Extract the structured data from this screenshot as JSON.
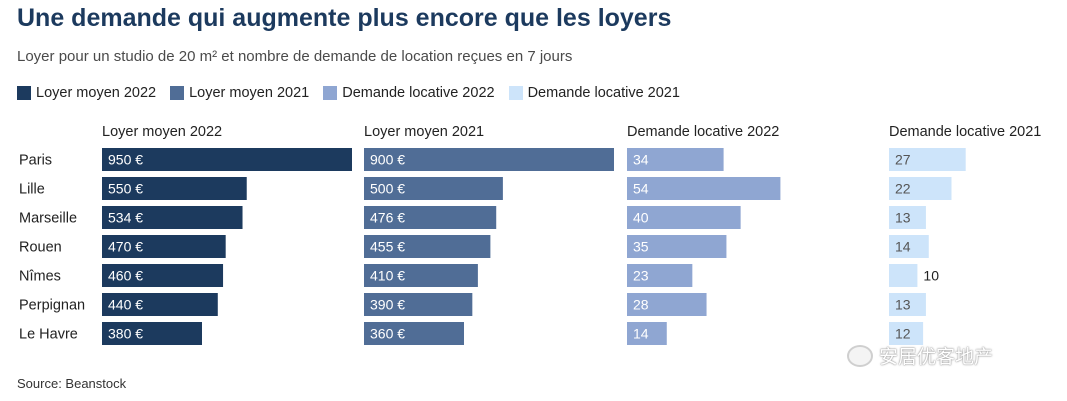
{
  "header": {
    "title": "Une demande qui augmente plus encore que les loyers",
    "subtitle": "Loyer pour un studio de 20 m² et nombre de demande de location reçues en 7 jours"
  },
  "legend": [
    {
      "label": "Loyer moyen 2022",
      "color": "#1c3a5e"
    },
    {
      "label": "Loyer moyen 2021",
      "color": "#506d96"
    },
    {
      "label": "Demande locative 2022",
      "color": "#8fa6d2"
    },
    {
      "label": "Demande locative 2021",
      "color": "#cde4fa"
    }
  ],
  "footer": {
    "source": "Source: Beanstock",
    "watermark": "安居优客地产"
  },
  "chart_data": {
    "type": "bar",
    "orientation": "horizontal",
    "categories": [
      "Paris",
      "Lille",
      "Marseille",
      "Rouen",
      "Nîmes",
      "Perpignan",
      "Le Havre"
    ],
    "series": [
      {
        "name": "Loyer moyen 2022",
        "color": "#1c3a5e",
        "values": [
          950,
          550,
          534,
          470,
          460,
          440,
          380
        ],
        "labels": [
          "950 €",
          "550 €",
          "534 €",
          "470 €",
          "460 €",
          "440 €",
          "380 €"
        ],
        "xlim": [
          0,
          950
        ]
      },
      {
        "name": "Loyer moyen 2021",
        "color": "#506d96",
        "values": [
          900,
          500,
          476,
          455,
          410,
          390,
          360
        ],
        "labels": [
          "900 €",
          "500 €",
          "476 €",
          "455 €",
          "410 €",
          "390 €",
          "360 €"
        ],
        "xlim": [
          0,
          900
        ]
      },
      {
        "name": "Demande locative 2022",
        "color": "#8fa6d2",
        "values": [
          34,
          54,
          40,
          35,
          23,
          28,
          14
        ],
        "labels": [
          "34",
          "54",
          "40",
          "35",
          "23",
          "28",
          "14"
        ],
        "xlim": [
          0,
          88
        ]
      },
      {
        "name": "Demande locative 2021",
        "color": "#cde4fa",
        "values": [
          27,
          22,
          13,
          14,
          10,
          13,
          12
        ],
        "labels": [
          "27",
          "22",
          "13",
          "14",
          "10",
          "13",
          "12"
        ],
        "xlim": [
          0,
          88
        ]
      }
    ]
  }
}
